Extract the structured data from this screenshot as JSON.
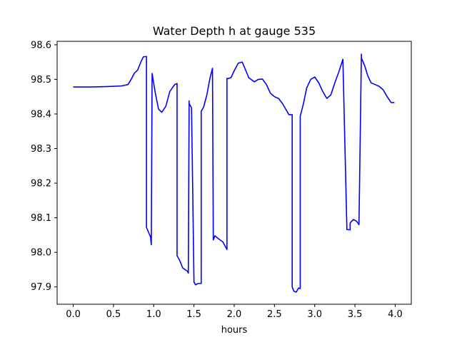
{
  "chart_data": {
    "type": "line",
    "title": "Water Depth h at gauge 535",
    "xlabel": "hours",
    "ylabel": "",
    "xlim": [
      -0.2,
      4.2
    ],
    "ylim": [
      97.85,
      98.61
    ],
    "xticks": [
      0.0,
      0.5,
      1.0,
      1.5,
      2.0,
      2.5,
      3.0,
      3.5,
      4.0
    ],
    "xtick_labels": [
      "0.0",
      "0.5",
      "1.0",
      "1.5",
      "2.0",
      "2.5",
      "3.0",
      "3.5",
      "4.0"
    ],
    "yticks": [
      97.9,
      98.0,
      98.1,
      98.2,
      98.3,
      98.4,
      98.5,
      98.6
    ],
    "ytick_labels": [
      "97.9",
      "98.0",
      "98.1",
      "98.2",
      "98.3",
      "98.4",
      "98.5",
      "98.6"
    ],
    "grid": false,
    "series": [
      {
        "color": "#0000ff",
        "x": [
          0.0,
          0.2,
          0.4,
          0.6,
          0.68,
          0.72,
          0.76,
          0.8,
          0.84,
          0.87,
          0.9,
          0.91,
          0.91,
          0.96,
          0.97,
          0.98,
          1.02,
          1.06,
          1.1,
          1.15,
          1.2,
          1.26,
          1.29,
          1.29,
          1.32,
          1.36,
          1.42,
          1.43,
          1.44,
          1.44,
          1.47,
          1.5,
          1.5,
          1.52,
          1.55,
          1.59,
          1.59,
          1.62,
          1.66,
          1.7,
          1.73,
          1.74,
          1.74,
          1.76,
          1.8,
          1.86,
          1.91,
          1.91,
          1.92,
          1.96,
          2.0,
          2.05,
          2.1,
          2.14,
          2.18,
          2.25,
          2.3,
          2.35,
          2.4,
          2.45,
          2.5,
          2.55,
          2.6,
          2.65,
          2.68,
          2.72,
          2.72,
          2.74,
          2.77,
          2.8,
          2.82,
          2.82,
          2.86,
          2.9,
          2.95,
          3.0,
          3.05,
          3.1,
          3.15,
          3.2,
          3.25,
          3.3,
          3.35,
          3.4,
          3.44,
          3.44,
          3.48,
          3.52,
          3.55,
          3.58,
          3.58,
          3.62,
          3.66,
          3.7,
          3.75,
          3.8,
          3.85,
          3.9,
          3.95,
          3.99
        ],
        "values": [
          98.478,
          98.478,
          98.479,
          98.481,
          98.485,
          98.5,
          98.518,
          98.527,
          98.55,
          98.565,
          98.566,
          98.566,
          98.072,
          98.045,
          98.022,
          98.517,
          98.46,
          98.414,
          98.405,
          98.422,
          98.465,
          98.485,
          98.488,
          97.99,
          97.978,
          97.955,
          97.945,
          97.94,
          98.438,
          98.43,
          98.418,
          97.918,
          97.914,
          97.906,
          97.91,
          97.91,
          98.408,
          98.42,
          98.455,
          98.505,
          98.532,
          98.045,
          98.036,
          98.048,
          98.04,
          98.03,
          98.008,
          98.503,
          98.502,
          98.505,
          98.525,
          98.547,
          98.55,
          98.528,
          98.505,
          98.493,
          98.5,
          98.501,
          98.485,
          98.46,
          98.45,
          98.445,
          98.43,
          98.41,
          98.398,
          98.398,
          97.9,
          97.888,
          97.885,
          97.897,
          97.895,
          98.393,
          98.43,
          98.475,
          98.5,
          98.507,
          98.49,
          98.465,
          98.445,
          98.455,
          98.49,
          98.522,
          98.558,
          98.066,
          98.065,
          98.085,
          98.095,
          98.09,
          98.08,
          98.573,
          98.562,
          98.54,
          98.51,
          98.49,
          98.485,
          98.48,
          98.47,
          98.45,
          98.433,
          98.433
        ]
      }
    ]
  }
}
